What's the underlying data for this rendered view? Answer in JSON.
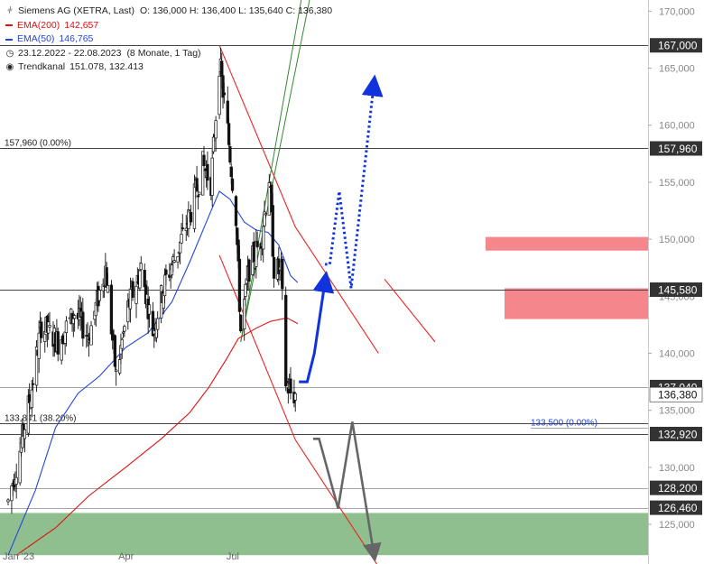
{
  "legend": {
    "instrument": "Siemens AG (XETRA, Last)",
    "ohlc": "O: 136,000  H: 136,400  L: 135,640  C: 136,380",
    "ema200": "EMA(200)",
    "ema200_value": "142,657",
    "ema50": "EMA(50)",
    "ema50_value": "146,765",
    "period": "23.12.2022 - 22.08.2023",
    "period_detail": "(8 Monate, 1 Tag)",
    "channel": "Trendkanal",
    "channel_values": "151.078, 132.413"
  },
  "colors": {
    "candle": "#111111",
    "ema200": "#dd1111",
    "ema50": "#2244dd",
    "channel": "#ee2222",
    "uptrend": "#338833",
    "forecast_up": "#1133dd",
    "forecast_down": "#666666",
    "resistance_zone": "#f47a7f",
    "support_zone": "#8fbf8f",
    "axis_text": "#888888"
  },
  "chart_data": {
    "type": "candlestick",
    "ylim": [
      122.0,
      170.5
    ],
    "y_ticks": [
      "125,000",
      "130,000",
      "135,000",
      "140,000",
      "145,000",
      "150,000",
      "155,000",
      "160,000",
      "165,000",
      "170,000"
    ],
    "y_tick_values": [
      125,
      130,
      135,
      140,
      145,
      150,
      155,
      160,
      165,
      170
    ],
    "x_ticks": [
      "Jan '23",
      "Apr",
      "Jul"
    ],
    "x_tick_dates": [
      "2023-01-01",
      "2023-04-01",
      "2023-07-01"
    ],
    "horizontal_levels": [
      {
        "value": 167.0,
        "label": "167,000",
        "text": ""
      },
      {
        "value": 157.96,
        "label": "157,960",
        "text": "157,960 (0.00%)"
      },
      {
        "value": 145.58,
        "label": "145,580",
        "text": ""
      },
      {
        "value": 137.04,
        "label": "137,040",
        "text": ""
      },
      {
        "value": 136.38,
        "label": "136,380",
        "text": ""
      },
      {
        "value": 133.841,
        "label": "",
        "text": "133,841 (38.20%)"
      },
      {
        "value": 133.5,
        "label": "",
        "text": "133,500 (0.00%)"
      },
      {
        "value": 132.92,
        "label": "132,920",
        "text": ""
      },
      {
        "value": 128.2,
        "label": "128,200",
        "text": ""
      },
      {
        "value": 126.46,
        "label": "126,460",
        "text": ""
      }
    ],
    "zones": [
      {
        "name": "resistance-upper",
        "from": 149.0,
        "to": 150.2
      },
      {
        "name": "resistance-lower",
        "from": 143.0,
        "to": 145.7
      },
      {
        "name": "support",
        "from": 122.3,
        "to": 126.0
      }
    ],
    "trend_channel": {
      "upper": [
        [
          "2023-06-19",
          167.0
        ],
        [
          "2023-08-22",
          151.08
        ],
        [
          "2023-10-31",
          140.0
        ]
      ],
      "lower": [
        [
          "2023-06-19",
          148.6
        ],
        [
          "2023-08-22",
          132.41
        ],
        [
          "2023-10-31",
          121.3
        ]
      ]
    },
    "uptrend_channel": [
      [
        [
          "2023-07-07",
          141.0
        ],
        [
          "2023-08-27",
          171.0
        ]
      ],
      [
        [
          "2023-07-07",
          141.0
        ],
        [
          "2023-09-03",
          171.0
        ]
      ]
    ],
    "ema50": [
      [
        "2022-12-23",
        122.3
      ],
      [
        "2023-01-15",
        128.0
      ],
      [
        "2023-02-01",
        133.5
      ],
      [
        "2023-02-20",
        136.5
      ],
      [
        "2023-03-10",
        138.0
      ],
      [
        "2023-04-01",
        140.5
      ],
      [
        "2023-04-20",
        141.8
      ],
      [
        "2023-05-10",
        144.5
      ],
      [
        "2023-05-25",
        148.0
      ],
      [
        "2023-06-10",
        152.0
      ],
      [
        "2023-06-19",
        154.2
      ],
      [
        "2023-06-28",
        153.5
      ],
      [
        "2023-07-10",
        151.5
      ],
      [
        "2023-07-20",
        150.8
      ],
      [
        "2023-07-30",
        150.6
      ],
      [
        "2023-08-08",
        149.5
      ],
      [
        "2023-08-18",
        146.8
      ],
      [
        "2023-08-24",
        146.2
      ]
    ],
    "ema200": [
      [
        "2022-12-30",
        122.3
      ],
      [
        "2023-02-01",
        124.7
      ],
      [
        "2023-03-01",
        127.5
      ],
      [
        "2023-04-01",
        130.0
      ],
      [
        "2023-05-01",
        132.5
      ],
      [
        "2023-05-25",
        134.8
      ],
      [
        "2023-06-10",
        137.0
      ],
      [
        "2023-06-25",
        139.5
      ],
      [
        "2023-07-05",
        141.3
      ],
      [
        "2023-07-20",
        142.2
      ],
      [
        "2023-08-01",
        142.8
      ],
      [
        "2023-08-15",
        143.1
      ],
      [
        "2023-08-24",
        142.6
      ]
    ],
    "forecast_blue": [
      [
        "2023-08-25",
        137.5
      ],
      [
        "2023-09-01",
        137.5
      ],
      [
        "2023-09-07",
        140.0
      ],
      [
        "2023-09-16",
        146.3
      ]
    ],
    "forecast_blue_dotted": [
      [
        "2023-09-16",
        147.8
      ],
      [
        "2023-09-20",
        147.8
      ],
      [
        "2023-09-28",
        154.2
      ],
      [
        "2023-10-08",
        145.7
      ],
      [
        "2023-10-27",
        163.5
      ]
    ],
    "forecast_grey": [
      [
        "2023-09-06",
        132.5
      ],
      [
        "2023-09-11",
        132.5
      ],
      [
        "2023-09-27",
        126.4
      ],
      [
        "2023-10-09",
        134.0
      ],
      [
        "2023-10-27",
        122.5
      ]
    ],
    "markers": [
      {
        "date": "2023-08-22",
        "value": 133.5,
        "text": "133,500 (0.00%)"
      }
    ],
    "anchors": [
      {
        "date": "2022-12-23",
        "value": 127.0
      },
      {
        "date": "2023-01-03",
        "value": 132.0
      },
      {
        "date": "2023-01-12",
        "value": 137.0
      },
      {
        "date": "2023-01-20",
        "value": 142.5
      },
      {
        "date": "2023-02-03",
        "value": 141.0
      },
      {
        "date": "2023-02-17",
        "value": 143.5
      },
      {
        "date": "2023-03-01",
        "value": 141.5
      },
      {
        "date": "2023-03-15",
        "value": 147.5
      },
      {
        "date": "2023-03-24",
        "value": 138.0
      },
      {
        "date": "2023-04-03",
        "value": 144.0
      },
      {
        "date": "2023-04-14",
        "value": 147.5
      },
      {
        "date": "2023-04-24",
        "value": 142.0
      },
      {
        "date": "2023-05-05",
        "value": 146.5
      },
      {
        "date": "2023-05-15",
        "value": 149.0
      },
      {
        "date": "2023-05-26",
        "value": 152.5
      },
      {
        "date": "2023-06-05",
        "value": 156.5
      },
      {
        "date": "2023-06-12",
        "value": 155.0
      },
      {
        "date": "2023-06-19",
        "value": 165.5
      },
      {
        "date": "2023-06-26",
        "value": 159.5
      },
      {
        "date": "2023-07-03",
        "value": 152.0
      },
      {
        "date": "2023-07-07",
        "value": 142.0
      },
      {
        "date": "2023-07-14",
        "value": 147.5
      },
      {
        "date": "2023-07-24",
        "value": 150.0
      },
      {
        "date": "2023-07-31",
        "value": 155.5
      },
      {
        "date": "2023-08-04",
        "value": 147.5
      },
      {
        "date": "2023-08-10",
        "value": 147.0
      },
      {
        "date": "2023-08-14",
        "value": 137.5
      },
      {
        "date": "2023-08-18",
        "value": 136.5
      },
      {
        "date": "2023-08-22",
        "value": 136.38
      }
    ]
  }
}
